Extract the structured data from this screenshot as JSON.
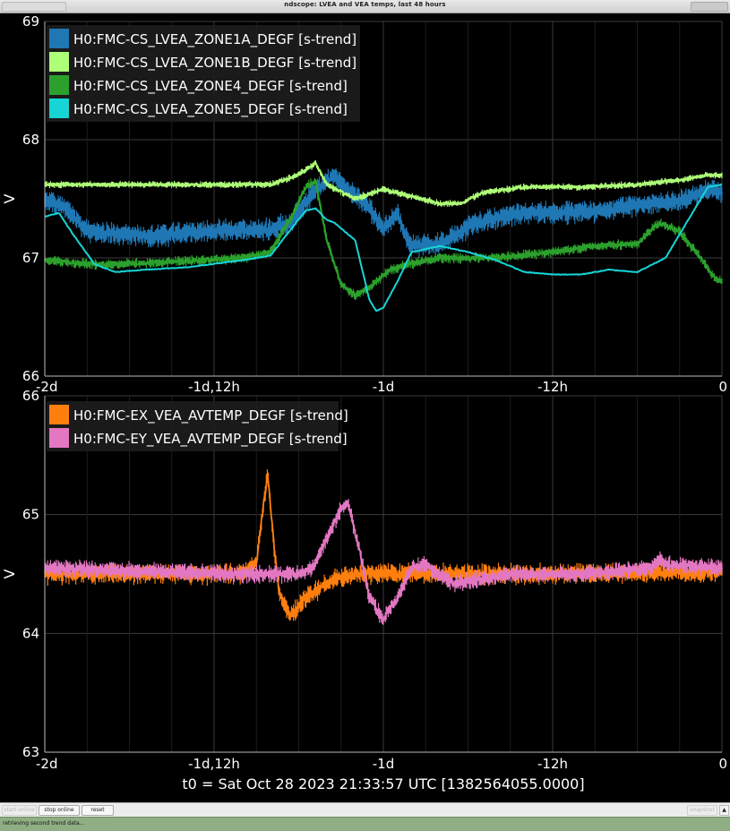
{
  "window": {
    "title": "ndscope: LVEA and VEA temps, last 48 hours"
  },
  "toolbar": {
    "start_online_label": "start online",
    "stop_online_label": "stop online",
    "reset_label": "reset",
    "right_button_label": "snapshot"
  },
  "status": {
    "text": "retrieving second trend data..."
  },
  "colors": {
    "background": "#000000",
    "axis": "#ffffff",
    "zone1a": "#1f77b4",
    "zone1b": "#aeff78",
    "zone4": "#2ca02c",
    "zone5": "#17d5d5",
    "ex": "#ff7f0e",
    "ey": "#e377c2"
  },
  "chart_data": [
    {
      "type": "line",
      "title": "",
      "xlabel": "",
      "ylabel": "V",
      "xlim": [
        -48,
        0
      ],
      "ylim": [
        66,
        69
      ],
      "x_ticks": [
        -48,
        -36,
        -24,
        -12,
        0
      ],
      "x_tick_labels": [
        "-2d",
        "-1d,12h",
        "-1d",
        "-12h",
        "0"
      ],
      "y_ticks": [
        66,
        67,
        68,
        69
      ],
      "y_tick_labels": [
        "66",
        "67",
        "68",
        "69"
      ],
      "grid": true,
      "legend": "top-left",
      "series": [
        {
          "name": "H0:FMC-CS_LVEA_ZONE1A_DEGF [s-trend]",
          "color": "#1f77b4",
          "band": 0.07,
          "noise": 0.05,
          "width": 2.4,
          "x": [
            -48,
            -46.5,
            -45,
            -40,
            -38,
            -32,
            -30.5,
            -29,
            -27.5,
            -26.5,
            -25,
            -24,
            -23,
            -22.5,
            -22,
            -20,
            -18.5,
            -17.5,
            -14,
            -12,
            -8,
            -6,
            -3,
            -1,
            0
          ],
          "y": [
            67.5,
            67.42,
            67.22,
            67.18,
            67.22,
            67.24,
            67.32,
            67.55,
            67.7,
            67.58,
            67.42,
            67.25,
            67.38,
            67.2,
            67.1,
            67.12,
            67.22,
            67.3,
            67.38,
            67.38,
            67.4,
            67.45,
            67.48,
            67.58,
            67.55
          ]
        },
        {
          "name": "H0:FMC-CS_LVEA_ZONE1B_DEGF [s-trend]",
          "color": "#aeff78",
          "band": 0.02,
          "noise": 0.02,
          "width": 2,
          "x": [
            -48,
            -40,
            -32,
            -30.5,
            -29.5,
            -28.8,
            -28,
            -26,
            -24,
            -22,
            -20,
            -18.5,
            -17,
            -14,
            -10,
            -6,
            -3,
            -1,
            0
          ],
          "y": [
            67.62,
            67.62,
            67.62,
            67.68,
            67.74,
            67.8,
            67.62,
            67.5,
            67.58,
            67.52,
            67.46,
            67.46,
            67.55,
            67.6,
            67.6,
            67.62,
            67.66,
            67.7,
            67.7
          ]
        },
        {
          "name": "H0:FMC-CS_LVEA_ZONE4_DEGF [s-trend]",
          "color": "#2ca02c",
          "band": 0.03,
          "noise": 0.03,
          "width": 2.2,
          "x": [
            -48,
            -44,
            -40,
            -34,
            -32,
            -30.5,
            -29.5,
            -28.8,
            -28,
            -27,
            -26,
            -25,
            -23.5,
            -22,
            -20,
            -16,
            -12,
            -9,
            -6,
            -4.5,
            -3,
            -1.5,
            -0.5,
            0
          ],
          "y": [
            66.98,
            66.94,
            66.96,
            67.0,
            67.05,
            67.35,
            67.6,
            67.65,
            67.15,
            66.78,
            66.68,
            66.75,
            66.9,
            66.95,
            67.0,
            67.0,
            67.05,
            67.1,
            67.12,
            67.3,
            67.22,
            67.0,
            66.82,
            66.8
          ]
        },
        {
          "name": "H0:FMC-CS_LVEA_ZONE5_DEGF [s-trend]",
          "color": "#17d5d5",
          "band": 0,
          "noise": 0.006,
          "width": 2,
          "x": [
            -48,
            -47,
            -46,
            -44.5,
            -43,
            -41,
            -38,
            -34,
            -32,
            -30.5,
            -29.5,
            -28.8,
            -28,
            -27.5,
            -26,
            -25,
            -24.5,
            -24,
            -23,
            -22,
            -20,
            -18,
            -16,
            -14,
            -12,
            -10,
            -8,
            -6,
            -4,
            -2.5,
            -1,
            0
          ],
          "y": [
            67.35,
            67.38,
            67.2,
            66.95,
            66.88,
            66.9,
            66.92,
            66.98,
            67.02,
            67.25,
            67.4,
            67.42,
            67.32,
            67.3,
            67.15,
            66.65,
            66.55,
            66.58,
            66.8,
            67.05,
            67.1,
            67.05,
            66.98,
            66.88,
            66.86,
            66.86,
            66.9,
            66.88,
            67.0,
            67.3,
            67.6,
            67.62
          ]
        }
      ]
    },
    {
      "type": "line",
      "title": "",
      "xlabel": "t0 = Sat Oct 28 2023 21:33:57 UTC [1382564055.0000]",
      "ylabel": "V",
      "xlim": [
        -48,
        0
      ],
      "ylim": [
        63,
        66
      ],
      "x_ticks": [
        -48,
        -36,
        -24,
        -12,
        0
      ],
      "x_tick_labels": [
        "-2d",
        "-1d,12h",
        "-1d",
        "-12h",
        "0"
      ],
      "y_ticks": [
        63,
        64,
        65,
        66
      ],
      "y_tick_labels": [
        "63",
        "64",
        "65",
        "66"
      ],
      "grid": true,
      "legend": "top-left",
      "series": [
        {
          "name": "H0:FMC-EX_VEA_AVTEMP_DEGF [s-trend]",
          "color": "#ff7f0e",
          "band": 0.06,
          "noise": 0.06,
          "width": 1.8,
          "x": [
            -48,
            -40,
            -34,
            -33,
            -32.2,
            -31.8,
            -31.4,
            -30.6,
            -29.5,
            -28.5,
            -27.5,
            -26,
            -24,
            -20,
            -10,
            0
          ],
          "y": [
            64.5,
            64.5,
            64.5,
            64.6,
            65.35,
            64.8,
            64.35,
            64.15,
            64.3,
            64.38,
            64.45,
            64.5,
            64.5,
            64.5,
            64.5,
            64.52
          ]
        },
        {
          "name": "H0:FMC-EY_VEA_AVTEMP_DEGF [s-trend]",
          "color": "#e377c2",
          "band": 0.05,
          "noise": 0.05,
          "width": 1.8,
          "x": [
            -48,
            -34,
            -30,
            -29,
            -28,
            -27,
            -26.5,
            -25.5,
            -25,
            -24,
            -23,
            -22,
            -21,
            -19,
            -15,
            -10,
            -5,
            -4.5,
            -4,
            0
          ],
          "y": [
            64.55,
            64.5,
            64.5,
            64.55,
            64.8,
            65.05,
            65.1,
            64.6,
            64.3,
            64.12,
            64.3,
            64.55,
            64.58,
            64.42,
            64.5,
            64.5,
            64.55,
            64.62,
            64.58,
            64.55
          ]
        }
      ]
    }
  ]
}
